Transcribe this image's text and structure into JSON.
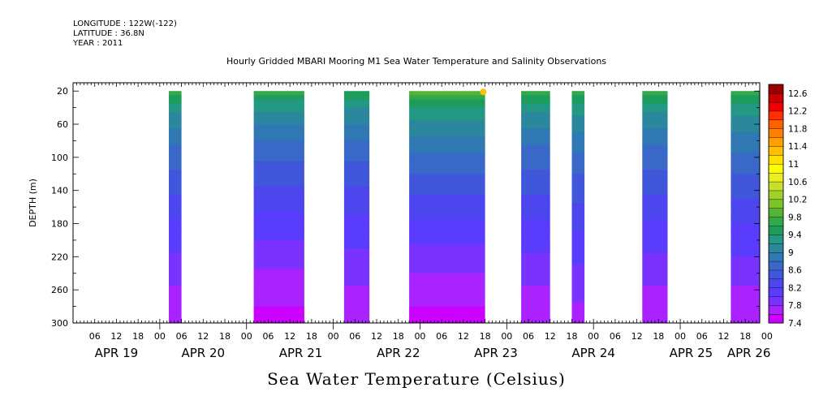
{
  "header": {
    "longitude": "LONGITUDE : 122W(-122)",
    "latitude": "LATITUDE : 36.8N",
    "year": "YEAR : 2011"
  },
  "chart_data": {
    "type": "heatmap",
    "title": "Hourly Gridded MBARI Mooring M1 Sea Water Temperature and Salinity Observations",
    "xlabel": "Sea Water Temperature (Celsius)",
    "ylabel": "DEPTH (m)",
    "x_range_hours_since_apr19_00": [
      0,
      190
    ],
    "ylim": [
      300,
      10
    ],
    "y_ticks": [
      20,
      60,
      100,
      140,
      180,
      220,
      260,
      300
    ],
    "x_hour_ticks": [
      "06",
      "12",
      "18",
      "00",
      "06",
      "12",
      "18",
      "00",
      "06",
      "12",
      "18",
      "00",
      "06",
      "12",
      "18",
      "00",
      "06",
      "12",
      "18",
      "00",
      "06",
      "12",
      "18",
      "00",
      "06",
      "12",
      "18",
      "00",
      "06",
      "12",
      "18",
      "00"
    ],
    "x_day_labels": [
      {
        "label": "APR 19",
        "hour": 12
      },
      {
        "label": "APR 20",
        "hour": 36
      },
      {
        "label": "APR 21",
        "hour": 63
      },
      {
        "label": "APR 22",
        "hour": 90
      },
      {
        "label": "APR 23",
        "hour": 117
      },
      {
        "label": "APR 24",
        "hour": 144
      },
      {
        "label": "APR 25",
        "hour": 171
      },
      {
        "label": "APR 26",
        "hour": 187
      }
    ],
    "data_segments": [
      {
        "start": 26.5,
        "end": 30.0,
        "surface_temp": 9.8,
        "bottom_temp": 7.6
      },
      {
        "start": 50.0,
        "end": 64.0,
        "surface_temp": 9.8,
        "bottom_temp": 7.5
      },
      {
        "start": 75.0,
        "end": 82.0,
        "surface_temp": 9.7,
        "bottom_temp": 7.6
      },
      {
        "start": 93.0,
        "end": 114.0,
        "surface_temp": 10.0,
        "bottom_temp": 7.5
      },
      {
        "start": 124.0,
        "end": 132.0,
        "surface_temp": 9.8,
        "bottom_temp": 7.6
      },
      {
        "start": 138.0,
        "end": 141.5,
        "surface_temp": 9.8,
        "bottom_temp": 7.7
      },
      {
        "start": 157.5,
        "end": 164.5,
        "surface_temp": 9.8,
        "bottom_temp": 7.6
      },
      {
        "start": 182.0,
        "end": 190.0,
        "surface_temp": 9.9,
        "bottom_temp": 7.6
      }
    ],
    "hotspot": {
      "hour": 113.5,
      "depth": 21,
      "temp": 11.2
    },
    "colorbar": {
      "labels": [
        "12.6",
        "12.2",
        "11.8",
        "11.4",
        "11",
        "10.6",
        "10.2",
        "9.8",
        "9.4",
        "9",
        "8.6",
        "8.2",
        "7.8",
        "7.4"
      ],
      "levels": [
        7.4,
        7.6,
        7.8,
        8.0,
        8.2,
        8.4,
        8.6,
        8.8,
        9.0,
        9.2,
        9.4,
        9.6,
        9.8,
        10.0,
        10.2,
        10.4,
        10.6,
        10.8,
        11.0,
        11.2,
        11.4,
        11.6,
        11.8,
        12.0,
        12.2,
        12.4,
        12.6
      ],
      "colors": [
        "#cc00ff",
        "#aa22ff",
        "#7a33ff",
        "#5a3cff",
        "#4d46ee",
        "#4157db",
        "#3a68c8",
        "#2f78b4",
        "#2a879c",
        "#239882",
        "#1d9c5c",
        "#33a84a",
        "#55b436",
        "#7cc42c",
        "#a0d22a",
        "#c6e02a",
        "#e8ee22",
        "#ffff00",
        "#ffe000",
        "#ffc000",
        "#ffa000",
        "#ff8000",
        "#ff6000",
        "#ff3000",
        "#ee0000",
        "#c80000",
        "#9a0000"
      ]
    }
  }
}
